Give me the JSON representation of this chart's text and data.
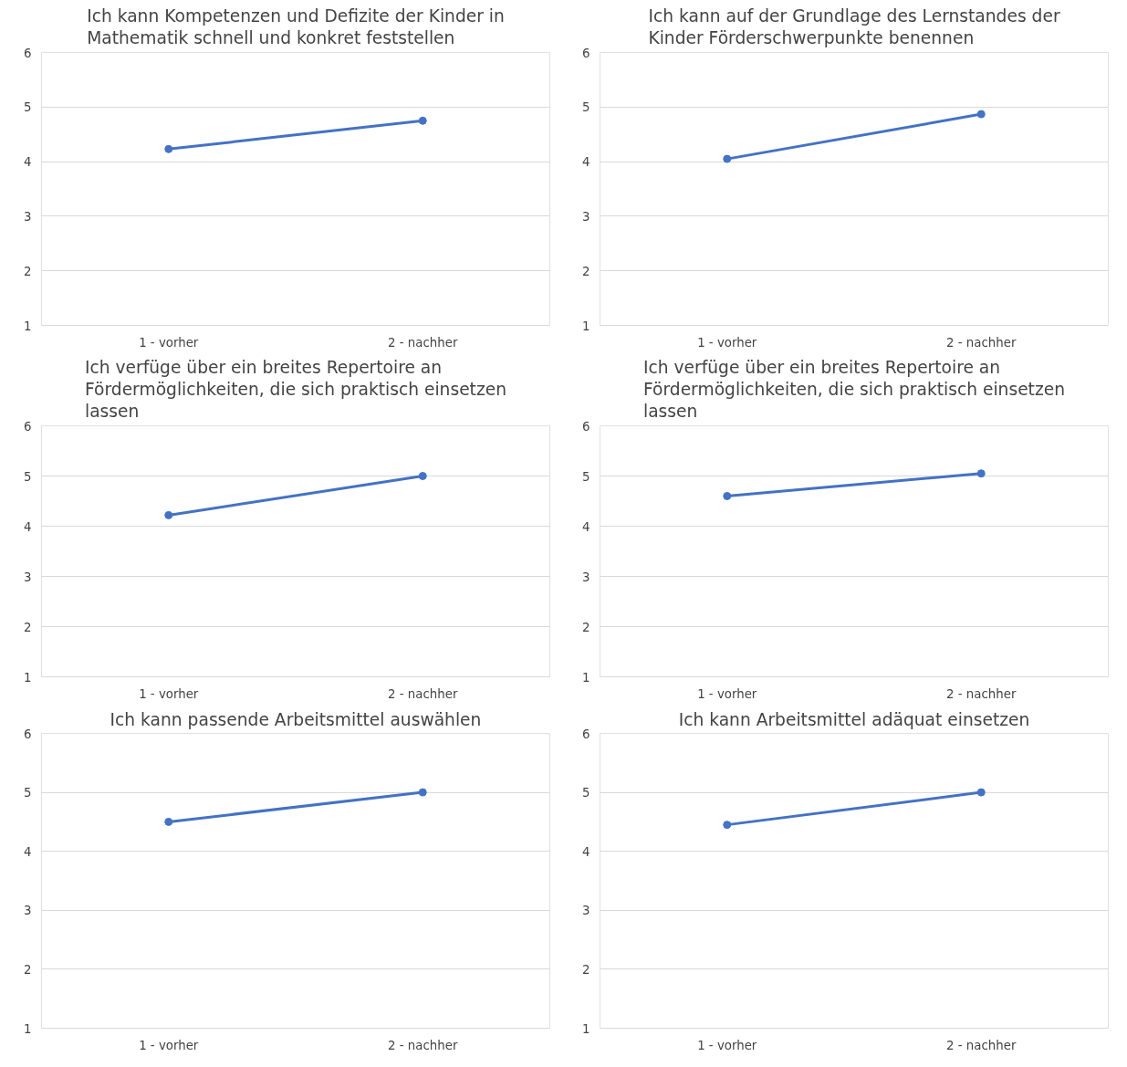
{
  "chart_data": [
    {
      "type": "line",
      "title": "Ich kann Kompetenzen und Defizite der Kinder in Mathematik schnell und konkret feststellen",
      "categories": [
        "1 - vorher",
        "2 - nachher"
      ],
      "series": [
        {
          "color": "#4472c4",
          "values": [
            4.23,
            4.75
          ]
        }
      ],
      "ylim": [
        1,
        6
      ],
      "yticks": [
        1,
        2,
        3,
        4,
        5,
        6
      ],
      "grid": "y",
      "marker": "circle",
      "line_style": "solid"
    },
    {
      "type": "line",
      "title": "Ich kann auf der Grundlage des Lernstandes der Kinder Förderschwerpunkte benennen",
      "categories": [
        "1 - vorher",
        "2 - nachher"
      ],
      "series": [
        {
          "color": "#4472c4",
          "values": [
            4.05,
            4.87
          ]
        }
      ],
      "ylim": [
        1,
        6
      ],
      "yticks": [
        1,
        2,
        3,
        4,
        5,
        6
      ],
      "grid": "y",
      "marker": "circle",
      "line_style": "solid"
    },
    {
      "type": "line",
      "title": "Ich verfüge über ein breites Repertoire an Fördermöglichkeiten, die sich praktisch einsetzen lassen",
      "categories": [
        "1 - vorher",
        "2 - nachher"
      ],
      "series": [
        {
          "color": "#4472c4",
          "values": [
            4.22,
            5.0
          ]
        }
      ],
      "ylim": [
        1,
        6
      ],
      "yticks": [
        1,
        2,
        3,
        4,
        5,
        6
      ],
      "grid": "y",
      "marker": "circle",
      "line_style": "solid"
    },
    {
      "type": "line",
      "title": "Ich verfüge über ein breites Repertoire an Fördermöglichkeiten, die sich praktisch einsetzen lassen",
      "categories": [
        "1 - vorher",
        "2 - nachher"
      ],
      "series": [
        {
          "color": "#4472c4",
          "values": [
            4.6,
            5.05
          ]
        }
      ],
      "ylim": [
        1,
        6
      ],
      "yticks": [
        1,
        2,
        3,
        4,
        5,
        6
      ],
      "grid": "y",
      "marker": "circle",
      "line_style": "solid"
    },
    {
      "type": "line",
      "title": "Ich kann passende Arbeitsmittel auswählen",
      "categories": [
        "1 - vorher",
        "2 - nachher"
      ],
      "series": [
        {
          "color": "#4472c4",
          "values": [
            4.5,
            5.0
          ]
        }
      ],
      "ylim": [
        1,
        6
      ],
      "yticks": [
        1,
        2,
        3,
        4,
        5,
        6
      ],
      "grid": "y",
      "marker": "circle",
      "line_style": "solid"
    },
    {
      "type": "line",
      "title": "Ich kann Arbeitsmittel adäquat einsetzen",
      "categories": [
        "1 - vorher",
        "2 - nachher"
      ],
      "series": [
        {
          "color": "#4472c4",
          "values": [
            4.45,
            5.0
          ]
        }
      ],
      "ylim": [
        1,
        6
      ],
      "yticks": [
        1,
        2,
        3,
        4,
        5,
        6
      ],
      "grid": "y",
      "marker": "circle",
      "line_style": "solid"
    }
  ]
}
